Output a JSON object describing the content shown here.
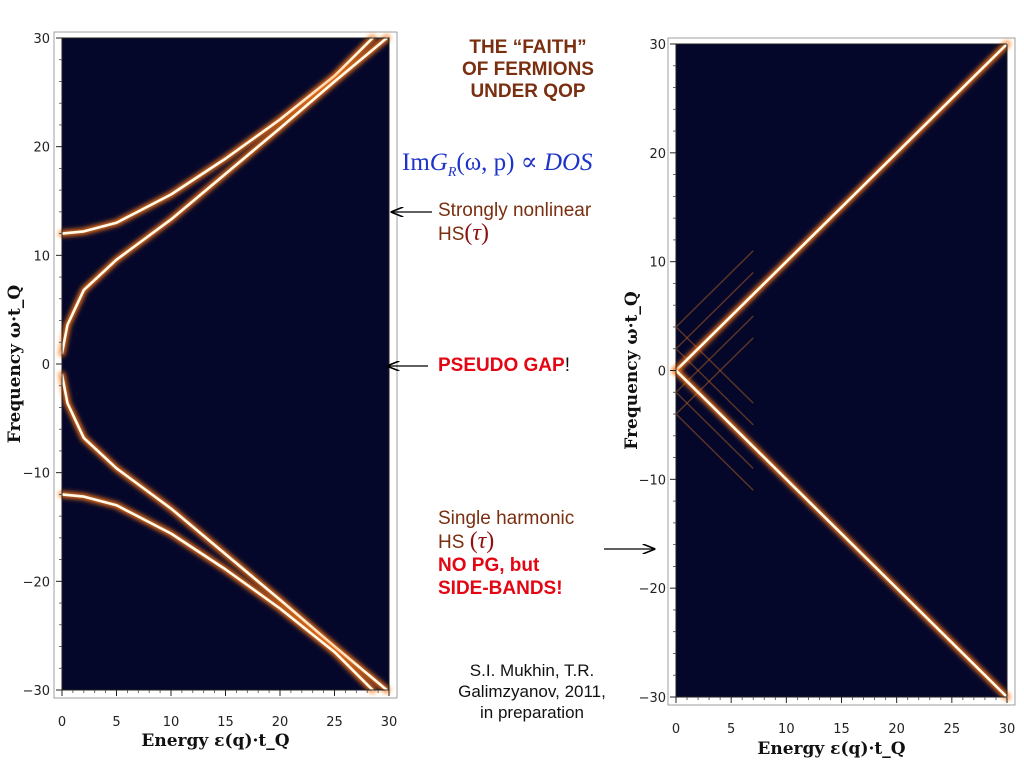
{
  "heading": {
    "line1_prefix": "THE",
    "line1_quoted": "“FAITH”",
    "line2": "OF FERMIONS",
    "line3": "UNDER QOP"
  },
  "formula": {
    "im": "Im",
    "g": "G",
    "sub": "R",
    "args": "(ω, p) ∝",
    "dos": "DOS"
  },
  "notes": {
    "strongly_line1": "Strongly nonlinear",
    "strongly_line2": "HS",
    "tau": "τ",
    "pseudo_gap": "PSEUDO GAP",
    "exclaim": "!",
    "single_line1": "Single harmonic",
    "single_line2": "HS",
    "no_pg": "NO PG, but",
    "side_bands": "SIDE-BANDS!"
  },
  "citation": {
    "line1": "S.I. Mukhin, T.R.",
    "line2": "Galimzyanov, 2011,",
    "line3": "in preparation"
  },
  "colors": {
    "plot_bg": "#05072a",
    "curve_core": "#fffbe8",
    "curve_glow": "#ff7a1a",
    "title": "#7a2f10",
    "formula": "#1d33c9",
    "alert": "#e30613"
  },
  "chart_data": [
    {
      "type": "heatmap",
      "title": "",
      "xlabel": "Energy ε(q)·t_Q",
      "ylabel": "Frequency ω·t_Q",
      "xlim": [
        0,
        30
      ],
      "ylim": [
        -30,
        30
      ],
      "x_ticks": [
        0,
        5,
        10,
        15,
        20,
        25,
        30
      ],
      "y_ticks": [
        30,
        20,
        10,
        0,
        -10,
        -20,
        -30
      ],
      "x_tick_labels": [
        "0",
        "5",
        "10",
        "15",
        "20",
        "25",
        "30"
      ],
      "y_tick_labels": [
        "30",
        "20",
        "10",
        "0",
        "−10",
        "−20",
        "−30"
      ],
      "series": [
        {
          "x": [
            0,
            2,
            5,
            10,
            15,
            20,
            25,
            28.5
          ],
          "y": [
            12,
            12.2,
            13,
            15.6,
            18.9,
            22.5,
            26.5,
            30
          ]
        },
        {
          "x": [
            0,
            0.5,
            2,
            5,
            10,
            15,
            20,
            25,
            29.8
          ],
          "y": [
            1,
            3.6,
            6.8,
            9.6,
            13.3,
            17.5,
            21.7,
            26,
            30
          ]
        },
        {
          "x": [
            0,
            0.5,
            2,
            5,
            10,
            15,
            20,
            25,
            29.8
          ],
          "y": [
            -1,
            -3.6,
            -6.8,
            -9.6,
            -13.3,
            -17.5,
            -21.7,
            -26,
            -30
          ]
        },
        {
          "x": [
            0,
            2,
            5,
            10,
            15,
            20,
            25,
            28.5
          ],
          "y": [
            -12,
            -12.2,
            -13,
            -15.6,
            -18.9,
            -22.5,
            -26.5,
            -30
          ]
        }
      ]
    },
    {
      "type": "heatmap",
      "title": "",
      "xlabel": "Energy ε(q)·t_Q",
      "ylabel": "Frequency ω·t_Q",
      "xlim": [
        0,
        30
      ],
      "ylim": [
        -30,
        30
      ],
      "x_ticks": [
        0,
        5,
        10,
        15,
        20,
        25,
        30
      ],
      "y_ticks": [
        30,
        20,
        10,
        0,
        -10,
        -20,
        -30
      ],
      "x_tick_labels": [
        "0",
        "5",
        "10",
        "15",
        "20",
        "25",
        "30"
      ],
      "y_tick_labels": [
        "30",
        "20",
        "10",
        "0",
        "−10",
        "−20",
        "−30"
      ],
      "series": [
        {
          "x": [
            0,
            30
          ],
          "y": [
            0,
            30
          ]
        },
        {
          "x": [
            0,
            30
          ],
          "y": [
            0,
            -30
          ]
        }
      ],
      "side_bands": [
        {
          "x": [
            0,
            7
          ],
          "y": [
            4,
            11
          ]
        },
        {
          "x": [
            0,
            7
          ],
          "y": [
            2,
            9
          ]
        },
        {
          "x": [
            0,
            7
          ],
          "y": [
            -2,
            5
          ]
        },
        {
          "x": [
            0,
            7
          ],
          "y": [
            -4,
            3
          ]
        },
        {
          "x": [
            0,
            7
          ],
          "y": [
            4,
            -3
          ]
        },
        {
          "x": [
            0,
            7
          ],
          "y": [
            2,
            -5
          ]
        },
        {
          "x": [
            0,
            7
          ],
          "y": [
            -2,
            -9
          ]
        },
        {
          "x": [
            0,
            7
          ],
          "y": [
            -4,
            -11
          ]
        }
      ]
    }
  ]
}
